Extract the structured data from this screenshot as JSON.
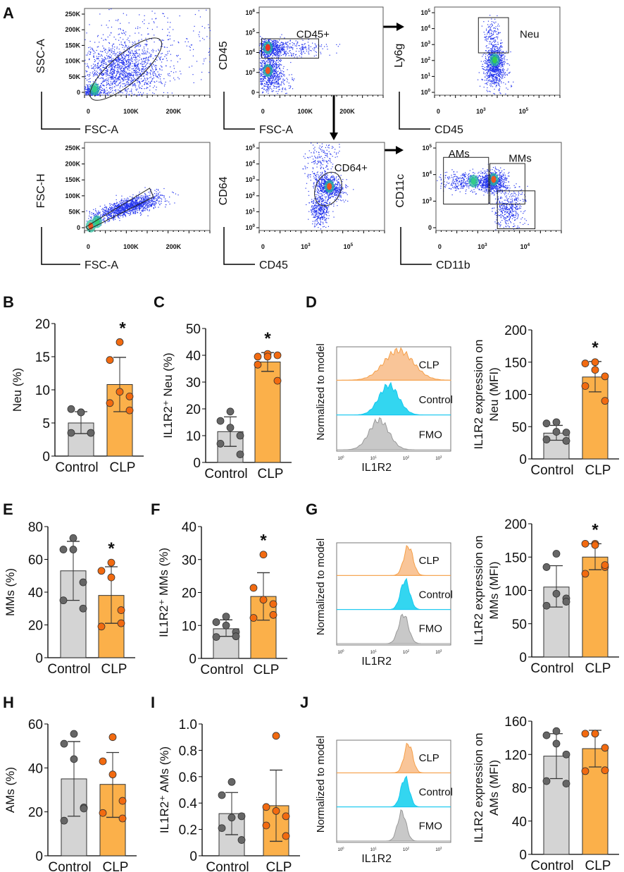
{
  "panel_letters": {
    "A": "A",
    "B": "B",
    "C": "C",
    "D": "D",
    "E": "E",
    "F": "F",
    "G": "G",
    "H": "H",
    "I": "I",
    "J": "J"
  },
  "flow_plots": [
    {
      "id": "p1",
      "ylabel": "SSC-A",
      "xlabel": "FSC-A",
      "xticks": [
        "0",
        "100K",
        "200K"
      ],
      "yticks": [
        "0",
        "50K",
        "100K",
        "150K",
        "200K",
        "250K"
      ],
      "gates": []
    },
    {
      "id": "p2",
      "ylabel": "CD45",
      "xlabel": "FSC-A",
      "xticks": [
        "0",
        "100K",
        "200K"
      ],
      "yticks": [
        "0",
        "10^3",
        "10^4",
        "10^5",
        "10^6"
      ],
      "gates": [
        "CD45+"
      ]
    },
    {
      "id": "p3",
      "ylabel": "Ly6g",
      "xlabel": "CD45",
      "xticks": [
        "0",
        "10^3",
        "10^5"
      ],
      "yticks": [
        "10^0",
        "10^1",
        "10^2",
        "10^3",
        "10^4",
        "10^5"
      ],
      "gates": [
        "Neu"
      ]
    },
    {
      "id": "p4",
      "ylabel": "FSC-H",
      "xlabel": "FSC-A",
      "xticks": [
        "0",
        "100K",
        "200K"
      ],
      "yticks": [
        "0",
        "50K",
        "100K",
        "150K",
        "200K",
        "250K"
      ],
      "gates": []
    },
    {
      "id": "p5",
      "ylabel": "CD64",
      "xlabel": "CD45",
      "xticks": [
        "0",
        "10^3",
        "10^5"
      ],
      "yticks": [
        "10^0",
        "10^1",
        "10^2",
        "10^3",
        "10^4",
        "10^5"
      ],
      "gates": [
        "CD64+"
      ]
    },
    {
      "id": "p6",
      "ylabel": "CD11c",
      "xlabel": "CD11b",
      "xticks": [
        "0",
        "10^3",
        "10^4"
      ],
      "yticks": [
        "0",
        "10^3",
        "10^4",
        "10^5"
      ],
      "gates": [
        "AMs",
        "MMs"
      ]
    }
  ],
  "colors": {
    "control": "#d4d4d4",
    "clp": "#fbb04a",
    "control_dot": "#666666",
    "clp_dot": "#f26a10",
    "hist_clp": "#f9c598",
    "hist_control": "#33d6f0",
    "hist_fmo": "#c8c8c8",
    "flow_dot": "#2233ee"
  },
  "chart_data": [
    {
      "id": "B",
      "type": "bar",
      "ylabel": "Neu (%)",
      "categories": [
        "Control",
        "CLP"
      ],
      "ylim": [
        0,
        20
      ],
      "yticks": [
        0,
        5,
        10,
        15,
        20
      ],
      "series": [
        {
          "name": "Control",
          "mean": 5.0,
          "sd_range": [
            3.4,
            6.7
          ],
          "points": [
            6.6,
            7.1,
            6.6,
            3.5,
            3.5,
            3.5
          ]
        },
        {
          "name": "CLP",
          "mean": 10.8,
          "sd_range": [
            6.7,
            14.9
          ],
          "points": [
            17.2,
            14.5,
            9.7,
            9.0,
            8.0,
            6.9
          ]
        }
      ],
      "significance": "*"
    },
    {
      "id": "C",
      "type": "bar",
      "ylabel": "IL1R2⁺ Neu (%)",
      "categories": [
        "Control",
        "CLP"
      ],
      "ylim": [
        0,
        50
      ],
      "yticks": [
        0,
        10,
        20,
        30,
        40,
        50
      ],
      "series": [
        {
          "name": "Control",
          "mean": 11.5,
          "sd_range": [
            6,
            17
          ],
          "points": [
            19,
            15.5,
            13,
            10,
            7,
            3
          ]
        },
        {
          "name": "CLP",
          "mean": 37.5,
          "sd_range": [
            34,
            41
          ],
          "points": [
            40.5,
            39.5,
            39.5,
            40,
            36.5,
            30.5
          ]
        }
      ],
      "significance": "*"
    },
    {
      "id": "D2",
      "type": "bar",
      "ylabel": "IL1R2 expression on|Neu (MFI)",
      "categories": [
        "Control",
        "CLP"
      ],
      "ylim": [
        0,
        200
      ],
      "yticks": [
        0,
        50,
        100,
        150,
        200
      ],
      "series": [
        {
          "name": "Control",
          "mean": 40,
          "sd_range": [
            29,
            52
          ],
          "points": [
            57,
            55,
            42,
            41,
            30,
            28
          ]
        },
        {
          "name": "CLP",
          "mean": 127,
          "sd_range": [
            104,
            151
          ],
          "points": [
            150,
            148,
            138,
            128,
            113,
            90
          ]
        }
      ],
      "significance": "*"
    },
    {
      "id": "E",
      "type": "bar",
      "ylabel": "MMs (%)",
      "categories": [
        "Control",
        "CLP"
      ],
      "ylim": [
        0,
        80
      ],
      "yticks": [
        0,
        20,
        40,
        60,
        80
      ],
      "series": [
        {
          "name": "Control",
          "mean": 53,
          "sd_range": [
            35,
            71
          ],
          "points": [
            73,
            66,
            66,
            46,
            35,
            30
          ]
        },
        {
          "name": "CLP",
          "mean": 38,
          "sd_range": [
            21,
            55.5
          ],
          "points": [
            58,
            53,
            49,
            29,
            19,
            21
          ]
        }
      ],
      "significance": "*"
    },
    {
      "id": "F",
      "type": "bar",
      "ylabel": "IL1R2⁺ MMs (%)",
      "categories": [
        "Control",
        "CLP"
      ],
      "ylim": [
        0,
        40
      ],
      "yticks": [
        0,
        10,
        20,
        30,
        40
      ],
      "series": [
        {
          "name": "Control",
          "mean": 9,
          "sd_range": [
            6.7,
            11.7
          ],
          "points": [
            12.7,
            11,
            10,
            8,
            6.5,
            6.7
          ]
        },
        {
          "name": "CLP",
          "mean": 18.8,
          "sd_range": [
            11.6,
            26
          ],
          "points": [
            31.5,
            21.4,
            17.8,
            16.5,
            12.3,
            13.2
          ]
        }
      ],
      "significance": "*"
    },
    {
      "id": "G2",
      "type": "bar",
      "ylabel": "IL1R2 expression on|MMs (MFI)",
      "categories": [
        "Control",
        "CLP"
      ],
      "ylim": [
        0,
        200
      ],
      "yticks": [
        0,
        50,
        100,
        150,
        200
      ],
      "series": [
        {
          "name": "Control",
          "mean": 105,
          "sd_range": [
            75,
            137
          ],
          "points": [
            155,
            135,
            95,
            88,
            77,
            83
          ]
        },
        {
          "name": "CLP",
          "mean": 150,
          "sd_range": [
            131,
            170
          ],
          "points": [
            170,
            170,
            168,
            135,
            125,
            138
          ]
        }
      ],
      "significance": "*"
    },
    {
      "id": "H",
      "type": "bar",
      "ylabel": "AMs (%)",
      "categories": [
        "Control",
        "CLP"
      ],
      "ylim": [
        0,
        60
      ],
      "yticks": [
        0,
        20,
        40,
        60
      ],
      "series": [
        {
          "name": "Control",
          "mean": 35,
          "sd_range": [
            18,
            52
          ],
          "points": [
            55.5,
            51,
            44,
            22,
            16,
            21.5
          ]
        },
        {
          "name": "CLP",
          "mean": 32.5,
          "sd_range": [
            17.5,
            47
          ],
          "points": [
            54,
            43,
            37,
            25,
            19.5,
            17
          ]
        }
      ],
      "significance": ""
    },
    {
      "id": "I",
      "type": "bar",
      "ylabel": "IL1R2⁺ AMs (%)",
      "categories": [
        "Control",
        "CLP"
      ],
      "ylim": [
        0,
        1.0
      ],
      "yticks": [
        "0",
        "0.2",
        "0.4",
        "0.6",
        "0.8",
        "1.0"
      ],
      "series": [
        {
          "name": "Control",
          "mean": 0.32,
          "sd_range": [
            0.16,
            0.48
          ],
          "points": [
            0.56,
            0.46,
            0.29,
            0.3,
            0.21,
            0.12
          ]
        },
        {
          "name": "CLP",
          "mean": 0.38,
          "sd_range": [
            0.11,
            0.65
          ],
          "points": [
            0.91,
            0.37,
            0.34,
            0.3,
            0.23,
            0.15
          ]
        }
      ],
      "significance": ""
    },
    {
      "id": "J2",
      "type": "bar",
      "ylabel": "IL1R2 expression on|AMs (MFI)",
      "categories": [
        "Control",
        "CLP"
      ],
      "ylim": [
        0,
        160
      ],
      "yticks": [
        0,
        40,
        80,
        120,
        160
      ],
      "series": [
        {
          "name": "Control",
          "mean": 118,
          "sd_range": [
            91,
            145
          ],
          "points": [
            148,
            143,
            133,
            120,
            88,
            85
          ]
        },
        {
          "name": "CLP",
          "mean": 127,
          "sd_range": [
            105,
            149
          ],
          "points": [
            145,
            145,
            145,
            128,
            100,
            101
          ]
        }
      ],
      "significance": ""
    },
    {
      "id": "D1",
      "type": "histogram",
      "ylabel": "Normalized to model",
      "xlabel": "IL1R2",
      "xticks": [
        "10^0",
        "10^1",
        "10^2",
        "10^3"
      ],
      "series": [
        {
          "name": "CLP",
          "peak_log10": 1.9,
          "spread": 0.45
        },
        {
          "name": "Control",
          "peak_log10": 1.6,
          "spread": 0.3
        },
        {
          "name": "FMO",
          "peak_log10": 1.3,
          "spread": 0.3
        }
      ]
    },
    {
      "id": "G1",
      "type": "histogram",
      "ylabel": "Normalized to model",
      "xlabel": "IL1R2",
      "xticks": [
        "10^0",
        "10^1",
        "10^2",
        "10^3"
      ],
      "series": [
        {
          "name": "CLP",
          "peak_log10": 2.2,
          "spread": 0.14
        },
        {
          "name": "Control",
          "peak_log10": 2.1,
          "spread": 0.14
        },
        {
          "name": "FMO",
          "peak_log10": 2.05,
          "spread": 0.15
        }
      ]
    },
    {
      "id": "J1",
      "type": "histogram",
      "ylabel": "Normalized to model",
      "xlabel": "IL1R2",
      "xticks": [
        "10^0",
        "10^1",
        "10^2",
        "10^3"
      ],
      "series": [
        {
          "name": "CLP",
          "peak_log10": 2.2,
          "spread": 0.13
        },
        {
          "name": "Control",
          "peak_log10": 2.1,
          "spread": 0.13
        },
        {
          "name": "FMO",
          "peak_log10": 2.0,
          "spread": 0.13
        }
      ]
    }
  ]
}
